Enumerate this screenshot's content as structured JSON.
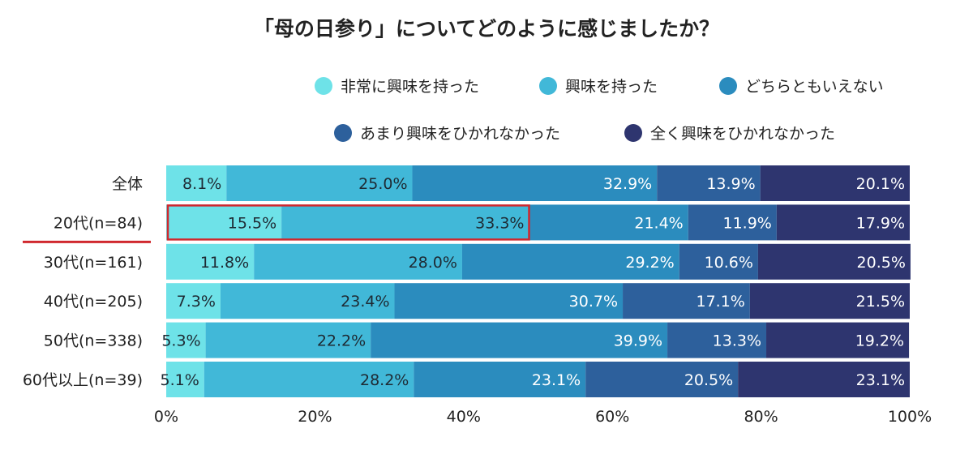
{
  "chart_data": {
    "type": "bar",
    "orientation": "horizontal",
    "stacked": true,
    "title": "「母の日参り」についてどのように感じましたか？",
    "categories": [
      "全体",
      "20代(n=84)",
      "30代(n=161)",
      "40代(n=205)",
      "50代(n=338)",
      "60代以上(n=39)"
    ],
    "series": [
      {
        "name": "非常に興味を持った",
        "color": "#6ee2e8",
        "values": [
          8.1,
          15.5,
          11.8,
          7.3,
          5.3,
          5.1
        ]
      },
      {
        "name": "興味を持った",
        "color": "#41b8d8",
        "values": [
          25.0,
          33.3,
          28.0,
          23.4,
          22.2,
          28.2
        ]
      },
      {
        "name": "どちらともいえない",
        "color": "#2b8cbe",
        "values": [
          32.9,
          21.4,
          29.2,
          30.7,
          39.9,
          23.1
        ]
      },
      {
        "name": "あまり興味をひかれなかった",
        "color": "#2d609c",
        "values": [
          13.9,
          11.9,
          10.6,
          17.1,
          13.3,
          20.5
        ]
      },
      {
        "name": "全く興味をひかれなかった",
        "color": "#2e356f",
        "values": [
          20.1,
          17.9,
          20.5,
          21.5,
          19.2,
          23.1
        ]
      }
    ],
    "xlim": [
      0,
      100
    ],
    "xticks": [
      "0%",
      "20%",
      "40%",
      "60%",
      "80%",
      "100%"
    ],
    "grid": false,
    "legend_placement": "top-right",
    "highlight": {
      "category": "20代(n=84)",
      "series": [
        "非常に興味を持った",
        "興味を持った"
      ],
      "color": "#d0282e"
    }
  }
}
